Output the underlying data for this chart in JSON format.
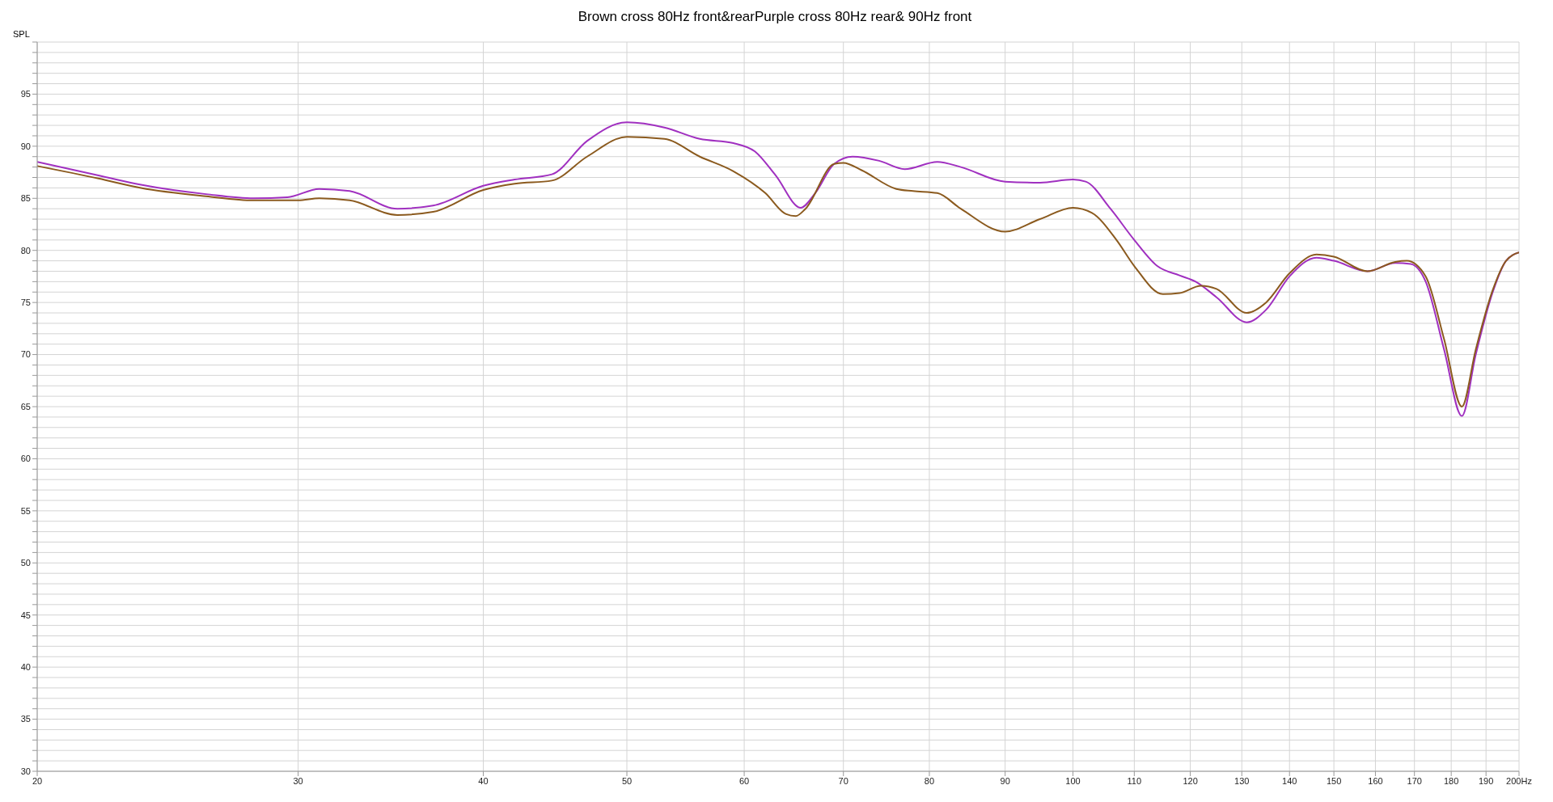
{
  "chart_data": {
    "type": "line",
    "title": "Brown cross 80Hz front&rearPurple cross 80Hz rear& 90Hz front",
    "ylabel": "SPL",
    "log": "x",
    "grid": true,
    "marker": "none",
    "line_style": "solid",
    "xlim": [
      20,
      200
    ],
    "xticks": [
      20,
      30,
      40,
      50,
      60,
      70,
      80,
      90,
      100,
      110,
      120,
      130,
      140,
      150,
      160,
      170,
      180,
      190,
      {
        "value": 200,
        "label": "200Hz"
      }
    ],
    "ylim": [
      30,
      100
    ],
    "yticks": [
      30,
      {
        "value": 31,
        "label": null
      },
      {
        "value": 32,
        "label": null
      },
      {
        "value": 33,
        "label": null
      },
      {
        "value": 34,
        "label": null
      },
      35,
      {
        "value": 36,
        "label": null
      },
      {
        "value": 37,
        "label": null
      },
      {
        "value": 38,
        "label": null
      },
      {
        "value": 39,
        "label": null
      },
      40,
      {
        "value": 41,
        "label": null
      },
      {
        "value": 42,
        "label": null
      },
      {
        "value": 43,
        "label": null
      },
      {
        "value": 44,
        "label": null
      },
      45,
      {
        "value": 46,
        "label": null
      },
      {
        "value": 47,
        "label": null
      },
      {
        "value": 48,
        "label": null
      },
      {
        "value": 49,
        "label": null
      },
      50,
      {
        "value": 51,
        "label": null
      },
      {
        "value": 52,
        "label": null
      },
      {
        "value": 53,
        "label": null
      },
      {
        "value": 54,
        "label": null
      },
      55,
      {
        "value": 56,
        "label": null
      },
      {
        "value": 57,
        "label": null
      },
      {
        "value": 58,
        "label": null
      },
      {
        "value": 59,
        "label": null
      },
      60,
      {
        "value": 61,
        "label": null
      },
      {
        "value": 62,
        "label": null
      },
      {
        "value": 63,
        "label": null
      },
      {
        "value": 64,
        "label": null
      },
      65,
      {
        "value": 66,
        "label": null
      },
      {
        "value": 67,
        "label": null
      },
      {
        "value": 68,
        "label": null
      },
      {
        "value": 69,
        "label": null
      },
      70,
      {
        "value": 71,
        "label": null
      },
      {
        "value": 72,
        "label": null
      },
      {
        "value": 73,
        "label": null
      },
      {
        "value": 74,
        "label": null
      },
      75,
      {
        "value": 76,
        "label": null
      },
      {
        "value": 77,
        "label": null
      },
      {
        "value": 78,
        "label": null
      },
      {
        "value": 79,
        "label": null
      },
      80,
      {
        "value": 81,
        "label": null
      },
      {
        "value": 82,
        "label": null
      },
      {
        "value": 83,
        "label": null
      },
      {
        "value": 84,
        "label": null
      },
      85,
      {
        "value": 86,
        "label": null
      },
      {
        "value": 87,
        "label": null
      },
      {
        "value": 88,
        "label": null
      },
      {
        "value": 89,
        "label": null
      },
      90,
      {
        "value": 91,
        "label": null
      },
      {
        "value": 92,
        "label": null
      },
      {
        "value": 93,
        "label": null
      },
      {
        "value": 94,
        "label": null
      },
      95,
      {
        "value": 96,
        "label": null
      },
      {
        "value": 97,
        "label": null
      },
      {
        "value": 98,
        "label": null
      },
      {
        "value": 99,
        "label": null
      },
      {
        "value": 100,
        "label": null
      }
    ],
    "series": [
      {
        "color": "#a030c0",
        "x": [
          20,
          22,
          23.5,
          26,
          28,
          29.5,
          31,
          32.5,
          35,
          37,
          40,
          42,
          44.5,
          47,
          50,
          53,
          56,
          59,
          61,
          63,
          65.5,
          67,
          69,
          71,
          74,
          77,
          81,
          84,
          90,
          95,
          100,
          102,
          106,
          110,
          114,
          118,
          121,
          125,
          131,
          135,
          140,
          146,
          150,
          158,
          165,
          169,
          173,
          178,
          183,
          187,
          192,
          196,
          200
        ],
        "values": [
          88.5,
          87.2,
          86.3,
          85.4,
          85.0,
          85.1,
          85.9,
          85.7,
          84.0,
          84.3,
          86.2,
          86.8,
          87.3,
          90.5,
          92.3,
          91.8,
          90.7,
          90.3,
          89.5,
          87.2,
          84.1,
          85.5,
          88.3,
          89.0,
          88.6,
          87.8,
          88.5,
          88.0,
          86.6,
          86.5,
          86.8,
          86.6,
          84.0,
          81.0,
          78.5,
          77.6,
          77.0,
          75.5,
          73.1,
          74.3,
          77.5,
          79.3,
          79.0,
          78.0,
          78.8,
          78.7,
          77.0,
          70.5,
          64.1,
          70.0,
          76.0,
          79.0,
          79.8
        ]
      },
      {
        "color": "#8b5a1e",
        "x": [
          20,
          22,
          23.5,
          26,
          28,
          30,
          31,
          32.5,
          35,
          37,
          40,
          42,
          44.5,
          47,
          50,
          53,
          56,
          59,
          62,
          64,
          65,
          66,
          69,
          70,
          72,
          76,
          78,
          81,
          84,
          90,
          95,
          100,
          103,
          107,
          110,
          115,
          118,
          122,
          125,
          131,
          135,
          140,
          146,
          150,
          158,
          165,
          168,
          173,
          178,
          183,
          187,
          192,
          196,
          200
        ],
        "values": [
          88.1,
          86.9,
          86.0,
          85.2,
          84.8,
          84.8,
          85.0,
          84.8,
          83.4,
          83.7,
          85.8,
          86.4,
          86.7,
          89.0,
          90.9,
          90.7,
          89.0,
          87.6,
          85.5,
          83.5,
          83.3,
          84.0,
          88.3,
          88.4,
          87.7,
          85.9,
          85.7,
          85.5,
          84.0,
          81.8,
          83.0,
          84.1,
          83.6,
          81.0,
          78.5,
          75.8,
          75.9,
          76.6,
          76.3,
          74.0,
          75.0,
          77.8,
          79.6,
          79.4,
          78.0,
          78.9,
          79.0,
          77.5,
          71.5,
          65.0,
          70.5,
          76.2,
          79.0,
          79.8
        ]
      }
    ]
  }
}
